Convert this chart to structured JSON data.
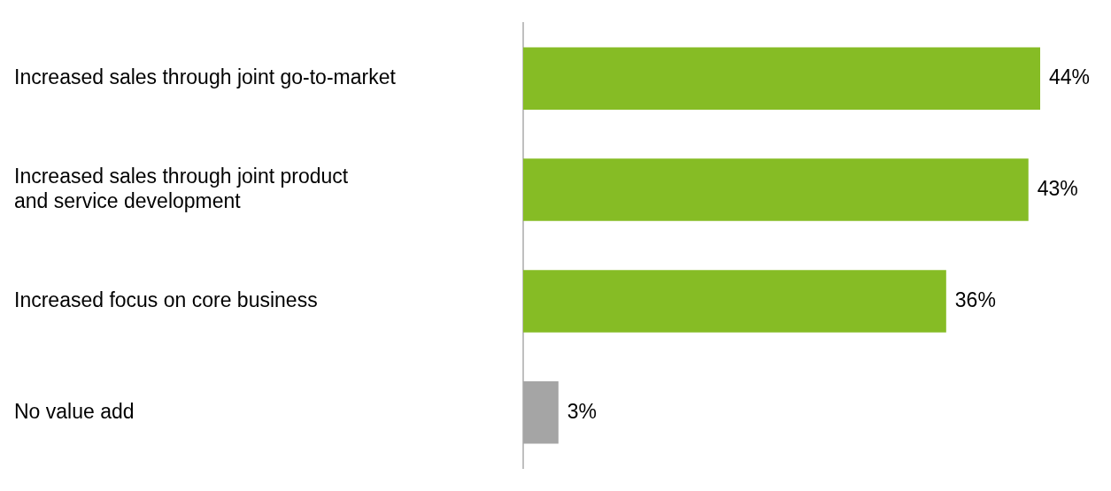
{
  "chart_data": {
    "type": "bar",
    "orientation": "horizontal",
    "categories": [
      "Increased sales through joint go-to-market",
      "Increased sales through joint product\nand service development",
      "Increased focus on core business",
      "No value add"
    ],
    "values": [
      44,
      43,
      36,
      3
    ],
    "colors": [
      "#86bc25",
      "#86bc25",
      "#86bc25",
      "#a5a5a5"
    ],
    "value_labels": [
      "44%",
      "43%",
      "36%",
      "3%"
    ],
    "legend": false
  }
}
